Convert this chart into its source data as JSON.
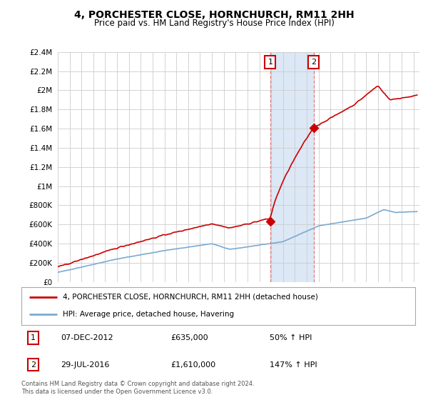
{
  "title": "4, PORCHESTER CLOSE, HORNCHURCH, RM11 2HH",
  "subtitle": "Price paid vs. HM Land Registry's House Price Index (HPI)",
  "legend_house": "4, PORCHESTER CLOSE, HORNCHURCH, RM11 2HH (detached house)",
  "legend_hpi": "HPI: Average price, detached house, Havering",
  "sale1_label": "1",
  "sale1_date": "07-DEC-2012",
  "sale1_price": "£635,000",
  "sale1_pct": "50% ↑ HPI",
  "sale2_label": "2",
  "sale2_date": "29-JUL-2016",
  "sale2_price": "£1,610,000",
  "sale2_pct": "147% ↑ HPI",
  "footer": "Contains HM Land Registry data © Crown copyright and database right 2024.\nThis data is licensed under the Open Government Licence v3.0.",
  "ylim": [
    0,
    2400000
  ],
  "yticks": [
    0,
    200000,
    400000,
    600000,
    800000,
    1000000,
    1200000,
    1400000,
    1600000,
    1800000,
    2000000,
    2200000,
    2400000
  ],
  "ytick_labels": [
    "£0",
    "£200K",
    "£400K",
    "£600K",
    "£800K",
    "£1M",
    "£1.2M",
    "£1.4M",
    "£1.6M",
    "£1.8M",
    "£2M",
    "£2.2M",
    "£2.4M"
  ],
  "xlim_start": 1995.0,
  "xlim_end": 2025.5,
  "sale1_x": 2012.92,
  "sale1_y": 635000,
  "sale2_x": 2016.57,
  "sale2_y": 1610000,
  "highlight_color": "#dce8f5",
  "dashed_line_color": "#e08080",
  "house_line_color": "#cc0000",
  "hpi_line_color": "#7aaad0",
  "background_color": "#ffffff",
  "grid_color": "#cccccc",
  "num_points": 370
}
